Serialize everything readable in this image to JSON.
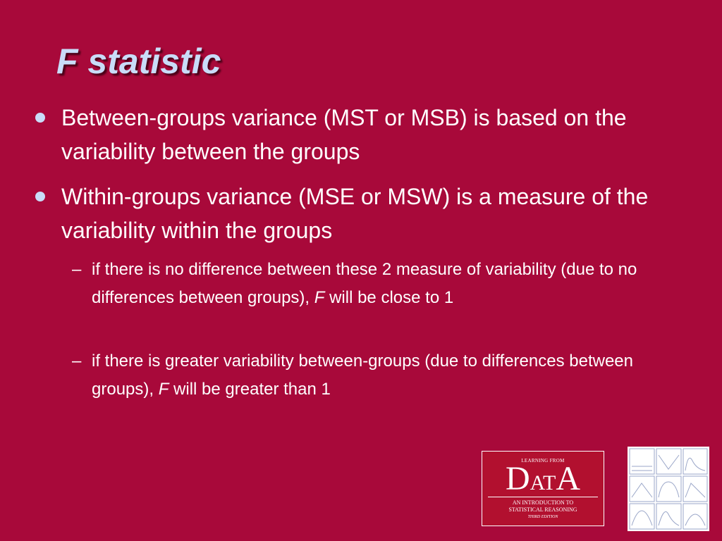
{
  "title": "F statistic",
  "bullets": [
    {
      "text": "Between-groups variance (MST or MSB) is based on the variability between the groups"
    },
    {
      "text": "Within-groups variance (MSE or MSW) is a measure of the variability within the groups",
      "subbullets": [
        {
          "runs": [
            "if there is no difference between these 2 measure of variability (due to no differences between groups), ",
            "F",
            " will be close to 1"
          ]
        },
        {
          "runs": [
            "if there is greater variability between-groups (due to differences between groups), ",
            "F",
            " will be greater than 1"
          ]
        }
      ]
    }
  ],
  "logo": {
    "top": "LEARNING FROM",
    "letters": [
      "D",
      "A",
      "T",
      "A"
    ],
    "subtitle": [
      "AN INTRODUCTION TO",
      "STATISTICAL REASONING"
    ],
    "edition": "THIRD EDITION"
  }
}
